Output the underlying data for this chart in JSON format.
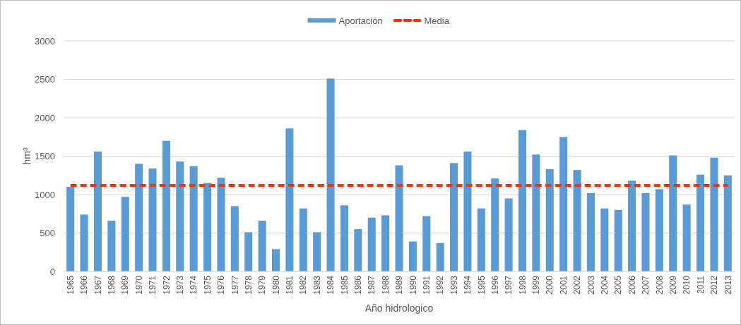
{
  "chart_data": {
    "type": "bar",
    "categories": [
      "1965",
      "1966",
      "1967",
      "1968",
      "1969",
      "1970",
      "1971",
      "1972",
      "1973",
      "1974",
      "1975",
      "1976",
      "1977",
      "1978",
      "1979",
      "1980",
      "1981",
      "1982",
      "1983",
      "1984",
      "1985",
      "1986",
      "1987",
      "1988",
      "1989",
      "1990",
      "1991",
      "1992",
      "1993",
      "1994",
      "1995",
      "1996",
      "1997",
      "1998",
      "1999",
      "2000",
      "2001",
      "2002",
      "2003",
      "2004",
      "2005",
      "2006",
      "2007",
      "2008",
      "2009",
      "2010",
      "2011",
      "2012",
      "2013"
    ],
    "series": [
      {
        "name": "Aportación",
        "color": "#5b9bd5",
        "values": [
          1100,
          740,
          1560,
          660,
          970,
          1400,
          1340,
          1700,
          1430,
          1370,
          1150,
          1220,
          850,
          510,
          660,
          290,
          1860,
          820,
          510,
          2510,
          860,
          550,
          700,
          730,
          1380,
          390,
          720,
          370,
          1410,
          1560,
          820,
          1210,
          950,
          1840,
          1520,
          1330,
          1750,
          1320,
          1020,
          820,
          800,
          1180,
          1020,
          1070,
          1510,
          870,
          1260,
          1480,
          1250
        ]
      },
      {
        "name": "Media",
        "type": "line",
        "color": "#ff3300",
        "line_style": "dashed",
        "values": [
          1120,
          1120,
          1120,
          1120,
          1120,
          1120,
          1120,
          1120,
          1120,
          1120,
          1120,
          1120,
          1120,
          1120,
          1120,
          1120,
          1120,
          1120,
          1120,
          1120,
          1120,
          1120,
          1120,
          1120,
          1120,
          1120,
          1120,
          1120,
          1120,
          1120,
          1120,
          1120,
          1120,
          1120,
          1120,
          1120,
          1120,
          1120,
          1120,
          1120,
          1120,
          1120,
          1120,
          1120,
          1120,
          1120,
          1120,
          1120,
          1120
        ]
      }
    ],
    "ylim": [
      0,
      3000
    ],
    "yticks": [
      0,
      500,
      1000,
      1500,
      2000,
      2500,
      3000
    ],
    "grid": "y",
    "legend": "top",
    "ylabel": "hm³",
    "xlabel": "Año hidrologico"
  }
}
